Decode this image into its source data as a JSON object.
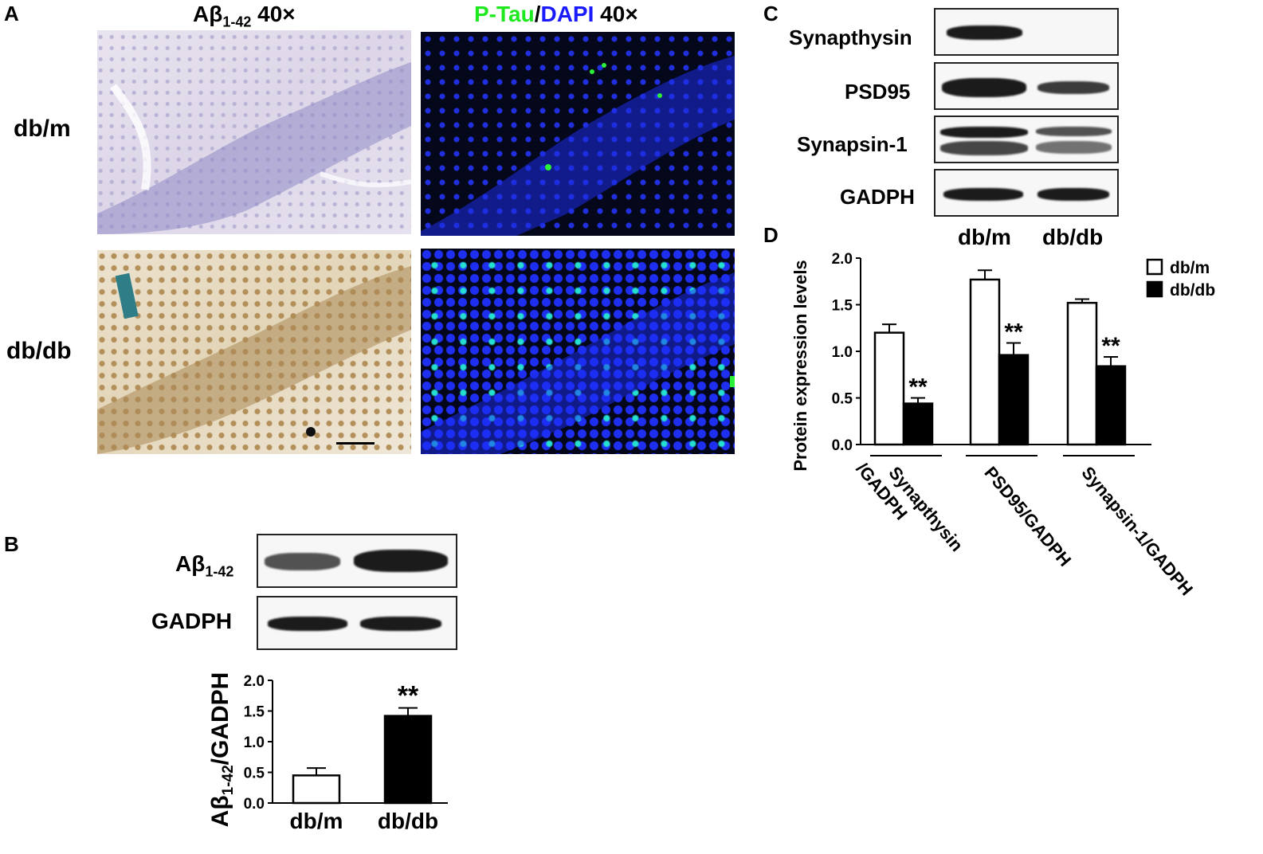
{
  "panelA": {
    "letter": "A",
    "col1_title_main": "Aβ",
    "col1_title_sub": "1-42",
    "col1_title_tail": " 40×",
    "col2_title_ptau": "P-Tau",
    "col2_title_slash": "/",
    "col2_title_dapi": "DAPI",
    "col2_title_tail": " 40×",
    "row1_label": "db/m",
    "row2_label": "db/db",
    "colors": {
      "ptau": "#1ee81e",
      "dapi": "#1a1aff"
    }
  },
  "panelB": {
    "letter": "B",
    "blot_label1_main": "Aβ",
    "blot_label1_sub": "1-42",
    "blot_label2": "GADPH"
  },
  "panelC": {
    "letter": "C",
    "labels": [
      "Synapthysin",
      "PSD95",
      "Synapsin-1",
      "GADPH"
    ],
    "lane_labels": [
      "db/m",
      "db/db"
    ]
  },
  "panelD": {
    "letter": "D"
  },
  "chart_data": [
    {
      "type": "bar",
      "panel": "B",
      "categories": [
        "db/m",
        "db/db"
      ],
      "values": [
        0.45,
        1.42
      ],
      "errors": [
        0.12,
        0.13
      ],
      "colors": [
        "#ffffff",
        "#000000"
      ],
      "significance": [
        "",
        "**"
      ],
      "ylabel_main": "Aβ",
      "ylabel_sub": "1-42",
      "ylabel_tail": "/GADPH",
      "ylim": [
        0,
        2.0
      ],
      "yticks": [
        "0.0",
        "0.5",
        "1.0",
        "1.5",
        "2.0"
      ]
    },
    {
      "type": "bar",
      "panel": "D",
      "groups": [
        {
          "label_lines": [
            "Synapthysin",
            "/GADPH"
          ]
        },
        {
          "label_lines": [
            "PSD95/GADPH"
          ]
        },
        {
          "label_lines": [
            "Synapsin-1/GADPH"
          ]
        }
      ],
      "series": [
        {
          "name": "db/m",
          "color": "#ffffff",
          "values": [
            1.2,
            1.77,
            1.52
          ],
          "errors": [
            0.09,
            0.1,
            0.04
          ]
        },
        {
          "name": "db/db",
          "color": "#000000",
          "values": [
            0.44,
            0.96,
            0.84
          ],
          "errors": [
            0.06,
            0.13,
            0.1
          ]
        }
      ],
      "significance": [
        "**",
        "**",
        "**"
      ],
      "ylabel": "Protein expression levels",
      "ylim": [
        0,
        2.0
      ],
      "yticks": [
        "0.0",
        "0.5",
        "1.0",
        "1.5",
        "2.0"
      ],
      "legend_position": "top-right"
    }
  ]
}
